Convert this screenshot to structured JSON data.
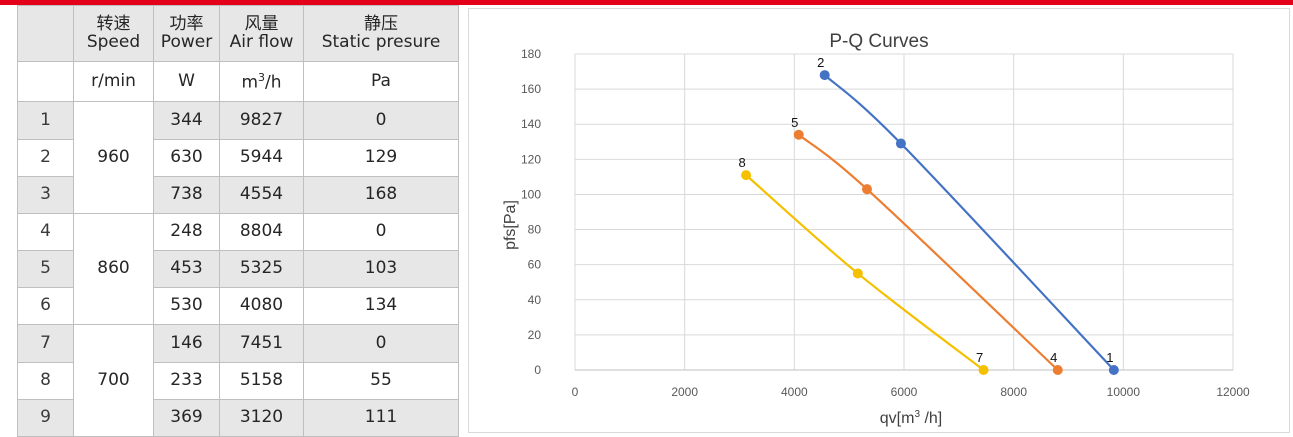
{
  "table": {
    "headers": {
      "speed": {
        "zh": "转速",
        "en": "Speed",
        "unit": "r/min"
      },
      "power": {
        "zh": "功率",
        "en": "Power",
        "unit": "W"
      },
      "airflow": {
        "zh": "风量",
        "en": "Air flow",
        "unit_base": "m",
        "unit_sup": "3",
        "unit_tail": "/h"
      },
      "pressure": {
        "zh": "静压",
        "en": "Static presure",
        "unit": "Pa"
      }
    },
    "rows": [
      {
        "idx": "1",
        "speed": "960",
        "power": "344",
        "airflow": "9827",
        "pressure": "0"
      },
      {
        "idx": "2",
        "speed": "960",
        "power": "630",
        "airflow": "5944",
        "pressure": "129"
      },
      {
        "idx": "3",
        "speed": "960",
        "power": "738",
        "airflow": "4554",
        "pressure": "168"
      },
      {
        "idx": "4",
        "speed": "860",
        "power": "248",
        "airflow": "8804",
        "pressure": "0"
      },
      {
        "idx": "5",
        "speed": "860",
        "power": "453",
        "airflow": "5325",
        "pressure": "103"
      },
      {
        "idx": "6",
        "speed": "860",
        "power": "530",
        "airflow": "4080",
        "pressure": "134"
      },
      {
        "idx": "7",
        "speed": "700",
        "power": "146",
        "airflow": "7451",
        "pressure": "0"
      },
      {
        "idx": "8",
        "speed": "700",
        "power": "233",
        "airflow": "5158",
        "pressure": "55"
      },
      {
        "idx": "9",
        "speed": "700",
        "power": "369",
        "airflow": "3120",
        "pressure": "111"
      }
    ]
  },
  "chart_data": {
    "type": "line",
    "title": "P-Q Curves",
    "xlabel_base": "qv[m",
    "xlabel_sup": "3",
    "xlabel_tail": " /h]",
    "ylabel": "pfs[Pa]",
    "xlim": [
      0,
      12000
    ],
    "ylim": [
      0,
      180
    ],
    "xticks": [
      0,
      2000,
      4000,
      6000,
      8000,
      10000,
      12000
    ],
    "yticks": [
      0,
      20,
      40,
      60,
      80,
      100,
      120,
      140,
      160,
      180
    ],
    "grid": true,
    "series": [
      {
        "color": "#4472c4",
        "points": [
          {
            "x": 4554,
            "y": 168,
            "label": "2"
          },
          {
            "x": 5944,
            "y": 129
          },
          {
            "x": 9827,
            "y": 0,
            "label": "1"
          }
        ]
      },
      {
        "color": "#ed7d31",
        "points": [
          {
            "x": 4080,
            "y": 134,
            "label": "5"
          },
          {
            "x": 5325,
            "y": 103
          },
          {
            "x": 8804,
            "y": 0,
            "label": "4"
          }
        ]
      },
      {
        "color": "#f5c000",
        "points": [
          {
            "x": 3120,
            "y": 111,
            "label": "8"
          },
          {
            "x": 5158,
            "y": 55
          },
          {
            "x": 7451,
            "y": 0,
            "label": "7"
          }
        ]
      }
    ]
  }
}
